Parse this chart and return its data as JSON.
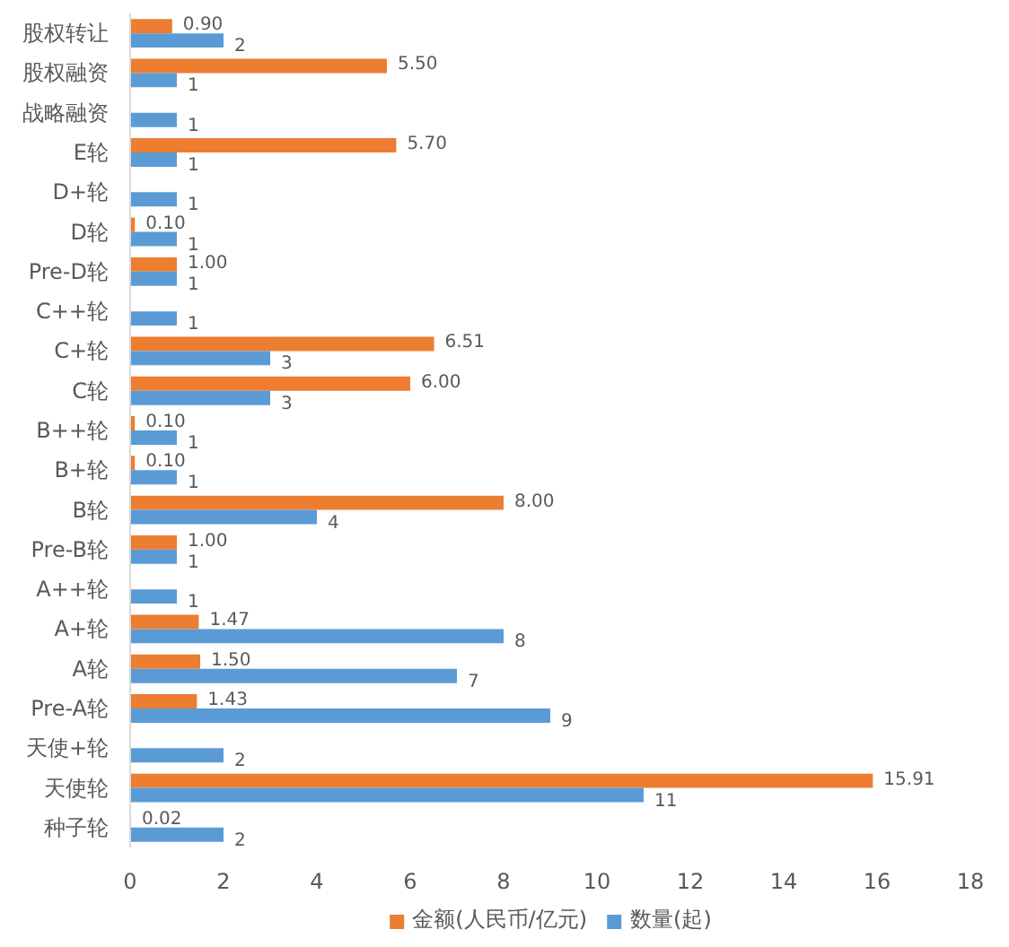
{
  "chart_data": {
    "type": "bar",
    "orientation": "horizontal",
    "categories": [
      "股权转让",
      "股权融资",
      "战略融资",
      "E轮",
      "D+轮",
      "D轮",
      "Pre-D轮",
      "C++轮",
      "C+轮",
      "C轮",
      "B++轮",
      "B+轮",
      "B轮",
      "Pre-B轮",
      "A++轮",
      "A+轮",
      "A轮",
      "Pre-A轮",
      "天使+轮",
      "天使轮",
      "种子轮"
    ],
    "series": [
      {
        "name": "金额(人民币/亿元)",
        "color": "#ed7d31",
        "values": [
          0.9,
          5.5,
          null,
          5.7,
          null,
          0.1,
          1.0,
          null,
          6.51,
          6.0,
          0.1,
          0.1,
          8.0,
          1.0,
          null,
          1.47,
          1.5,
          1.43,
          null,
          15.91,
          0.02
        ],
        "value_labels": [
          "0.90",
          "5.50",
          null,
          "5.70",
          null,
          "0.10",
          "1.00",
          null,
          "6.51",
          "6.00",
          "0.10",
          "0.10",
          "8.00",
          "1.00",
          null,
          "1.47",
          "1.50",
          "1.43",
          null,
          "15.91",
          "0.02"
        ]
      },
      {
        "name": "数量(起)",
        "color": "#5b9bd5",
        "values": [
          2,
          1,
          1,
          1,
          1,
          1,
          1,
          1,
          3,
          3,
          1,
          1,
          4,
          1,
          1,
          8,
          7,
          9,
          2,
          11,
          2
        ],
        "value_labels": [
          "2",
          "1",
          "1",
          "1",
          "1",
          "1",
          "1",
          "1",
          "3",
          "3",
          "1",
          "1",
          "4",
          "1",
          "1",
          "8",
          "7",
          "9",
          "2",
          "11",
          "2"
        ]
      }
    ],
    "xlim": [
      0,
      18
    ],
    "xticks": [
      0,
      2,
      4,
      6,
      8,
      10,
      12,
      14,
      16,
      18
    ],
    "legend": "bottom"
  }
}
